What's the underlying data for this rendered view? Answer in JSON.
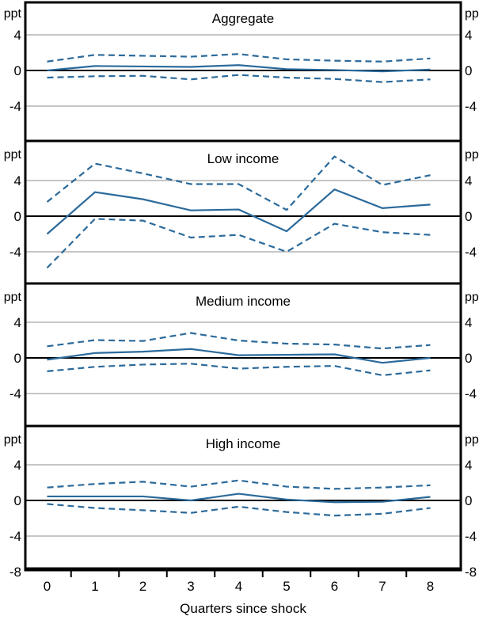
{
  "chart_data": {
    "type": "line",
    "layout": "4 stacked panels, shared x axis",
    "xlabel": "Quarters since shock",
    "x": [
      0,
      1,
      2,
      3,
      4,
      5,
      6,
      7,
      8
    ],
    "xticklabels": [
      "0",
      "1",
      "2",
      "3",
      "4",
      "5",
      "6",
      "7",
      "8"
    ],
    "x_minor_ticks_at": [
      0.5,
      1.5,
      2.5,
      3.5,
      4.5,
      5.5,
      6.5,
      7.5
    ],
    "unit_label": "ppt",
    "ylim": [
      -8,
      8
    ],
    "gridlines_at": [
      4,
      -4
    ],
    "zero_line": true,
    "legend": "none",
    "panels": [
      {
        "title": "Aggregate",
        "yticks_left": [
          "4",
          "0",
          "-4"
        ],
        "yticks_right": [
          "4",
          "0",
          "-4"
        ],
        "ytick_values": [
          4,
          0,
          -4
        ],
        "series": [
          {
            "name": "response",
            "style": "solid",
            "values": [
              0.0,
              0.5,
              0.45,
              0.4,
              0.6,
              0.15,
              0.05,
              -0.1,
              0.1
            ]
          },
          {
            "name": "upper band",
            "style": "dashed",
            "values": [
              1.0,
              1.75,
              1.65,
              1.55,
              1.85,
              1.25,
              1.1,
              1.0,
              1.35
            ]
          },
          {
            "name": "lower band",
            "style": "dashed",
            "values": [
              -0.8,
              -0.65,
              -0.6,
              -1.0,
              -0.5,
              -0.8,
              -0.95,
              -1.3,
              -1.0
            ]
          }
        ]
      },
      {
        "title": "Low income",
        "yticks_left": [
          "4",
          "0",
          "-4"
        ],
        "yticks_right": [
          "4",
          "0",
          "-4"
        ],
        "ytick_values": [
          4,
          0,
          -4
        ],
        "series": [
          {
            "name": "response",
            "style": "solid",
            "values": [
              -2.0,
              2.7,
              1.9,
              0.65,
              0.75,
              -1.7,
              3.0,
              0.9,
              1.3
            ]
          },
          {
            "name": "upper band",
            "style": "dashed",
            "values": [
              1.6,
              5.9,
              4.8,
              3.6,
              3.6,
              0.7,
              6.7,
              3.5,
              4.6
            ]
          },
          {
            "name": "lower band",
            "style": "dashed",
            "values": [
              -5.8,
              -0.3,
              -0.5,
              -2.4,
              -2.1,
              -4.0,
              -0.85,
              -1.8,
              -2.1
            ]
          }
        ]
      },
      {
        "title": "Medium income",
        "yticks_left": [
          "4",
          "0",
          "-4"
        ],
        "yticks_right": [
          "4",
          "0",
          "-4"
        ],
        "ytick_values": [
          4,
          0,
          -4
        ],
        "series": [
          {
            "name": "response",
            "style": "solid",
            "values": [
              -0.2,
              0.55,
              0.7,
              1.0,
              0.3,
              0.35,
              0.4,
              -0.55,
              0.0
            ]
          },
          {
            "name": "upper band",
            "style": "dashed",
            "values": [
              1.3,
              2.0,
              1.9,
              2.8,
              1.95,
              1.6,
              1.5,
              1.05,
              1.45
            ]
          },
          {
            "name": "lower band",
            "style": "dashed",
            "values": [
              -1.5,
              -1.0,
              -0.75,
              -0.65,
              -1.2,
              -1.0,
              -0.9,
              -1.95,
              -1.4
            ]
          }
        ]
      },
      {
        "title": "High income",
        "yticks_left": [
          "4",
          "0",
          "-4",
          "-8"
        ],
        "yticks_right": [
          "4",
          "0",
          "-4",
          "-8"
        ],
        "ytick_values": [
          4,
          0,
          -4,
          -8
        ],
        "series": [
          {
            "name": "response",
            "style": "solid",
            "values": [
              0.45,
              0.45,
              0.45,
              0.0,
              0.75,
              0.1,
              -0.2,
              -0.15,
              0.4
            ]
          },
          {
            "name": "upper band",
            "style": "dashed",
            "values": [
              1.45,
              1.85,
              2.1,
              1.55,
              2.25,
              1.55,
              1.3,
              1.45,
              1.7
            ]
          },
          {
            "name": "lower band",
            "style": "dashed",
            "values": [
              -0.4,
              -0.85,
              -1.1,
              -1.4,
              -0.7,
              -1.3,
              -1.7,
              -1.5,
              -0.85
            ]
          }
        ]
      }
    ],
    "colors": {
      "line": "#2b6a9b",
      "gridline": "#b3b3b3",
      "zero_line": "#000000",
      "border": "#000000",
      "background": "#ffffff"
    }
  }
}
